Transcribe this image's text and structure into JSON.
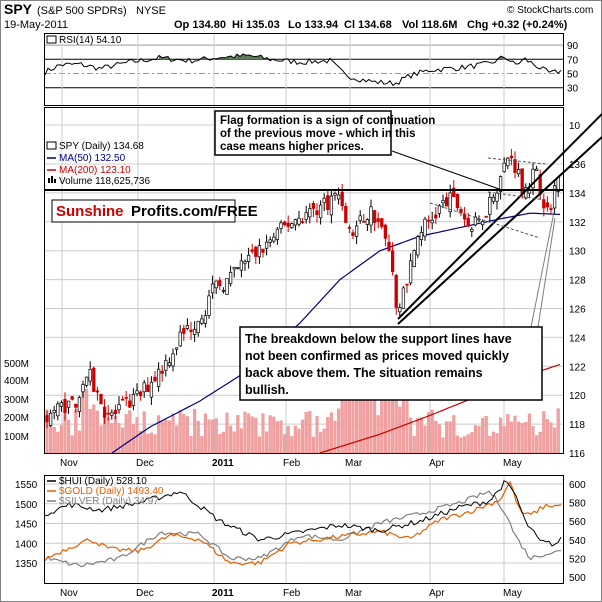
{
  "header": {
    "symbol": "SPY",
    "name": "(S&P 500 SPDRs)",
    "exchange": "NYSE",
    "date": "19-May-2011",
    "open": "Op 134.80",
    "high": "Hi 135.03",
    "low": "Lo 133.94",
    "close": "Cl 134.68",
    "volume": "Vol 118.6M",
    "change": "Chg +0.32 (+0.24%)",
    "copyright": "© StockCharts.com"
  },
  "rsi": {
    "label": "RSI(14) 54.10",
    "ticks": [
      "90",
      "70",
      "50",
      "30"
    ]
  },
  "price_legend": {
    "spy": "SPY (Daily) 134.68",
    "ma50": "MA(50) 132.50",
    "ma200": "MA(200) 123.10",
    "volume": "Volume 118,625,736"
  },
  "watermark": {
    "part1": "Sunshine",
    "part2": "Profits.com/FREE"
  },
  "annotations": {
    "flag": [
      "Flag formation is a sign of continuation",
      "of the previous move - which in this",
      "case means higher prices."
    ],
    "breakdown": [
      "The breakdown below the support lines have",
      "not been confirmed as prices moved quickly",
      "back above them. The situation remains",
      "bullish."
    ]
  },
  "price_ticks": [
    "136",
    "134",
    "132",
    "130",
    "128",
    "126",
    "124",
    "122",
    "120",
    "118",
    "116",
    "10"
  ],
  "volume_ticks": [
    "500M",
    "400M",
    "300M",
    "200M",
    "100M"
  ],
  "months_top": [
    "Nov",
    "Dec",
    "2011",
    "Feb",
    "Mar",
    "Apr",
    "May"
  ],
  "lower_legend": {
    "hui": "$HUI (Daily) 528.10",
    "gold": "$GOLD (Daily) 1493.40",
    "silver": "$SILVER (Daily) 34.97"
  },
  "lower_left_ticks": [
    "1550",
    "1500",
    "1450",
    "1400",
    "1350"
  ],
  "lower_right_ticks": [
    "600",
    "580",
    "560",
    "540",
    "520",
    "500"
  ],
  "months_bottom": [
    "Nov",
    "Dec",
    "2011",
    "Feb",
    "Mar",
    "Apr",
    "May"
  ],
  "colors": {
    "up": "#000000",
    "down": "#cc0000",
    "ma50": "#000080",
    "ma200": "#cc0000",
    "volume": "#f4a0a0",
    "rsi_fill": "#5a7a5a",
    "hui": "#000000",
    "gold": "#e06000",
    "silver": "#808080",
    "sunshine": "#cc0000"
  },
  "chart_data": {
    "type": "line",
    "title": "SPY (S&P 500 SPDRs) NYSE",
    "ylim": [
      116,
      137
    ],
    "series": [
      {
        "name": "SPY (Daily) 134.68",
        "kind": "candlestick",
        "dates": [
          "Nov",
          "Dec",
          "Jan",
          "Feb",
          "Mar",
          "Apr",
          "May"
        ],
        "close_monthly": [
          120,
          123,
          128,
          133,
          131,
          134,
          134.68
        ]
      },
      {
        "name": "MA(50) 132.50",
        "last": 132.5
      },
      {
        "name": "MA(200) 123.10",
        "last": 123.1
      },
      {
        "name": "Volume 118,625,736",
        "last": 118625736
      }
    ],
    "rsi_last": 54.1,
    "lower_panel": {
      "series": [
        {
          "name": "$HUI (Daily) 528.10",
          "last": 528.1
        },
        {
          "name": "$GOLD (Daily) 1493.40",
          "last": 1493.4
        },
        {
          "name": "$SILVER (Daily) 34.97",
          "last": 34.97
        }
      ]
    }
  }
}
